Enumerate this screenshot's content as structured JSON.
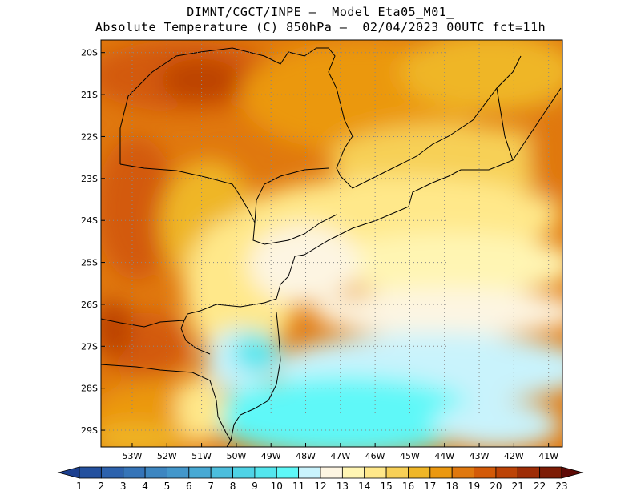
{
  "header": {
    "line1": "DIMNT/CGCT/INPE —  Model Eta05_M01_",
    "line2": "Absolute Temperature (C) 850hPa —  02/04/2023 00UTC fct=11h"
  },
  "map": {
    "lon_range": [
      -53.9,
      -40.6
    ],
    "lat_range": [
      -29.4,
      -19.7
    ],
    "lon_ticks": [
      {
        "value": -53,
        "label": "53W"
      },
      {
        "value": -52,
        "label": "52W"
      },
      {
        "value": -51,
        "label": "51W"
      },
      {
        "value": -50,
        "label": "50W"
      },
      {
        "value": -49,
        "label": "49W"
      },
      {
        "value": -48,
        "label": "48W"
      },
      {
        "value": -47,
        "label": "47W"
      },
      {
        "value": -46,
        "label": "46W"
      },
      {
        "value": -45,
        "label": "45W"
      },
      {
        "value": -44,
        "label": "44W"
      },
      {
        "value": -43,
        "label": "43W"
      },
      {
        "value": -42,
        "label": "42W"
      },
      {
        "value": -41,
        "label": "41W"
      }
    ],
    "lat_ticks": [
      {
        "value": -20,
        "label": "20S"
      },
      {
        "value": -21,
        "label": "21S"
      },
      {
        "value": -22,
        "label": "22S"
      },
      {
        "value": -23,
        "label": "23S"
      },
      {
        "value": -24,
        "label": "24S"
      },
      {
        "value": -25,
        "label": "25S"
      },
      {
        "value": -26,
        "label": "26S"
      },
      {
        "value": -27,
        "label": "27S"
      },
      {
        "value": -28,
        "label": "28S"
      },
      {
        "value": -29,
        "label": "29S"
      }
    ],
    "gridlines": "dotted"
  },
  "colorbar": {
    "labels": [
      "1",
      "2",
      "3",
      "4",
      "5",
      "6",
      "7",
      "8",
      "9",
      "10",
      "11",
      "12",
      "13",
      "14",
      "15",
      "16",
      "17",
      "18",
      "19",
      "20",
      "21",
      "22",
      "23"
    ],
    "colors": [
      "#1c3f8f",
      "#23509e",
      "#2d62ad",
      "#3574b8",
      "#3d86c1",
      "#4397cb",
      "#47a9d4",
      "#4cbedd",
      "#4fd3e6",
      "#53e6ee",
      "#5ef8f8",
      "#c9f3fc",
      "#fdf5e2",
      "#fff5b3",
      "#ffe88a",
      "#f7d057",
      "#efb627",
      "#eb9810",
      "#e0780e",
      "#d35a08",
      "#bc4306",
      "#9e2d06",
      "#7d1c05",
      "#5e0a06"
    ]
  }
}
